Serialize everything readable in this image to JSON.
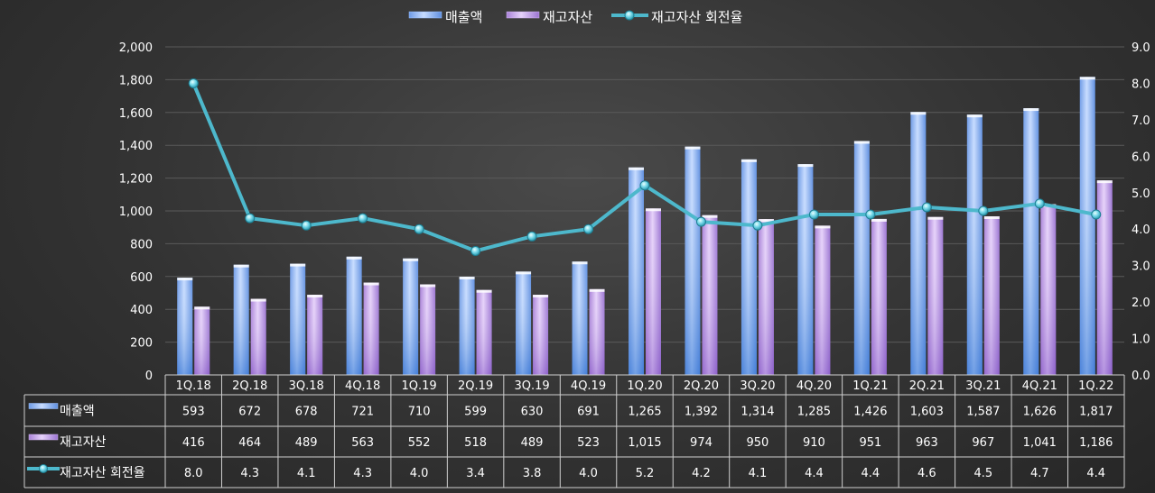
{
  "chart_data": {
    "type": "bar",
    "categories": [
      "1Q.18",
      "2Q.18",
      "3Q.18",
      "4Q.18",
      "1Q.19",
      "2Q.19",
      "3Q.19",
      "4Q.19",
      "1Q.20",
      "2Q.20",
      "3Q.20",
      "4Q.20",
      "1Q.21",
      "2Q.21",
      "3Q.21",
      "4Q.21",
      "1Q.22"
    ],
    "series": [
      {
        "name": "매출액",
        "type": "bar",
        "axis": "left",
        "values": [
          593,
          672,
          678,
          721,
          710,
          599,
          630,
          691,
          1265,
          1392,
          1314,
          1285,
          1426,
          1603,
          1587,
          1626,
          1817
        ],
        "labels": [
          "593",
          "672",
          "678",
          "721",
          "710",
          "599",
          "630",
          "691",
          "1,265",
          "1,392",
          "1,314",
          "1,285",
          "1,426",
          "1,603",
          "1,587",
          "1,626",
          "1,817"
        ]
      },
      {
        "name": "재고자산",
        "type": "bar",
        "axis": "left",
        "values": [
          416,
          464,
          489,
          563,
          552,
          518,
          489,
          523,
          1015,
          974,
          950,
          910,
          951,
          963,
          967,
          1041,
          1186
        ],
        "labels": [
          "416",
          "464",
          "489",
          "563",
          "552",
          "518",
          "489",
          "523",
          "1,015",
          "974",
          "950",
          "910",
          "951",
          "963",
          "967",
          "1,041",
          "1,186"
        ]
      },
      {
        "name": "재고자산 회전율",
        "type": "line",
        "axis": "right",
        "values": [
          8.0,
          4.3,
          4.1,
          4.3,
          4.0,
          3.4,
          3.8,
          4.0,
          5.2,
          4.2,
          4.1,
          4.4,
          4.4,
          4.6,
          4.5,
          4.7,
          4.4
        ],
        "labels": [
          "8.0",
          "4.3",
          "4.1",
          "4.3",
          "4.0",
          "3.4",
          "3.8",
          "4.0",
          "5.2",
          "4.2",
          "4.1",
          "4.4",
          "4.4",
          "4.6",
          "4.5",
          "4.7",
          "4.4"
        ]
      }
    ],
    "ylim_left": [
      0,
      2000
    ],
    "yticks_left": [
      "0",
      "200",
      "400",
      "600",
      "800",
      "1,000",
      "1,200",
      "1,400",
      "1,600",
      "1,800",
      "2,000"
    ],
    "ylim_right": [
      0,
      9
    ],
    "yticks_right": [
      "0.0",
      "1.0",
      "2.0",
      "3.0",
      "4.0",
      "5.0",
      "6.0",
      "7.0",
      "8.0",
      "9.0"
    ],
    "legend_position": "top-center",
    "data_table": true,
    "colors": {
      "sales": "#8fb6f2",
      "inventory": "#c79ee6",
      "turnover": "#4db8cc"
    }
  }
}
